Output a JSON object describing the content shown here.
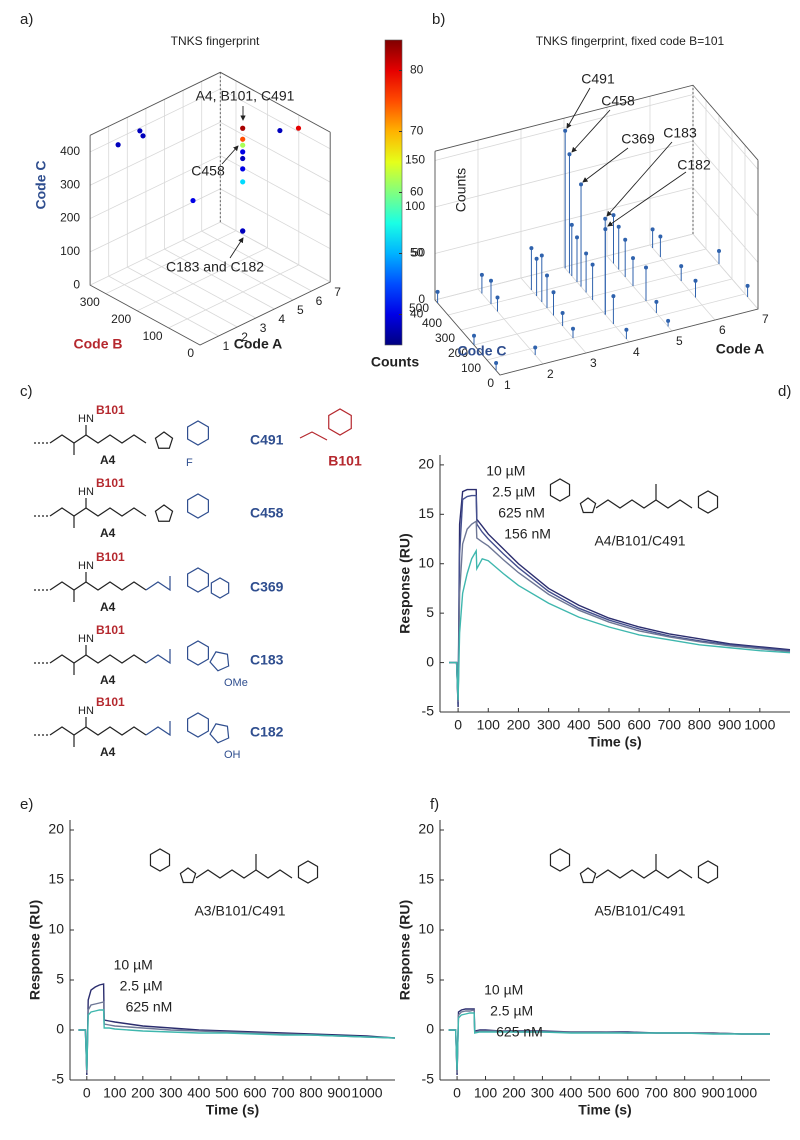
{
  "chart_data": [
    {
      "type": "scatter3d",
      "panel_label": "a)",
      "title": "TNKS fingerprint",
      "xlabel": "Code A",
      "ylabel": "Code B",
      "zlabel": "Code C",
      "xlim": [
        0,
        7
      ],
      "ylim": [
        0,
        350
      ],
      "zlim": [
        0,
        450
      ],
      "xticks": [
        1,
        2,
        3,
        4,
        5,
        6,
        7
      ],
      "yticks": [
        0,
        100,
        200,
        300
      ],
      "zticks": [
        0,
        100,
        200,
        300,
        400
      ],
      "x": [
        4,
        4,
        4,
        4,
        4,
        4,
        4,
        4,
        4,
        1,
        2,
        2,
        6,
        7,
        3
      ],
      "y": [
        101,
        101,
        101,
        101,
        101,
        101,
        101,
        101,
        101,
        320,
        300,
        310,
        101,
        101,
        200
      ],
      "z": [
        491,
        458,
        440,
        420,
        400,
        369,
        330,
        183,
        182,
        410,
        420,
        430,
        430,
        410,
        250
      ],
      "values": [
        83,
        75,
        62,
        40,
        38,
        40,
        52,
        40,
        38,
        38,
        38,
        38,
        38,
        80,
        40
      ],
      "colormap": "jet",
      "grid": true,
      "colorbar": {
        "label": "Counts",
        "lim": [
          35,
          85
        ],
        "ticks": [
          40,
          50,
          60,
          70,
          80
        ]
      },
      "annotations": [
        "A4, B101, C491",
        "C458",
        "C183 and C182"
      ]
    },
    {
      "type": "stem3d",
      "panel_label": "b)",
      "title": "TNKS fingerprint, fixed code B=101",
      "xlabel": "Code A",
      "ylabel": "Code C",
      "zlabel": "Counts",
      "xlim": [
        1,
        7
      ],
      "ylim": [
        0,
        500
      ],
      "zlim": [
        0,
        160
      ],
      "xticks": [
        1,
        2,
        3,
        4,
        5,
        6,
        7
      ],
      "yticks": [
        0,
        100,
        200,
        300,
        400,
        500
      ],
      "zticks": [
        0,
        50,
        100,
        150
      ],
      "color": "#2f62ad",
      "grid": true,
      "x": [
        4,
        4,
        4,
        4,
        4,
        3,
        3,
        3,
        3,
        4,
        4,
        4,
        4,
        5,
        5,
        5,
        5,
        3,
        4,
        5,
        2,
        2,
        1,
        1,
        6,
        6,
        7,
        7,
        2,
        3,
        5,
        6,
        1,
        6,
        4,
        3,
        5,
        2
      ],
      "y": [
        491,
        458,
        369,
        183,
        182,
        420,
        380,
        340,
        300,
        440,
        400,
        330,
        280,
        450,
        410,
        360,
        300,
        250,
        120,
        200,
        470,
        350,
        480,
        200,
        420,
        150,
        300,
        80,
        60,
        100,
        30,
        480,
        30,
        260,
        20,
        180,
        120,
        400
      ],
      "values": [
        148,
        128,
        110,
        103,
        92,
        45,
        40,
        50,
        35,
        55,
        48,
        42,
        38,
        52,
        46,
        40,
        30,
        25,
        30,
        36,
        20,
        15,
        12,
        10,
        22,
        18,
        14,
        12,
        8,
        10,
        6,
        20,
        8,
        16,
        10,
        14,
        12,
        25
      ],
      "annotations": [
        "C491",
        "C458",
        "C369",
        "C183",
        "C182"
      ]
    },
    {
      "type": "line",
      "panel_label": "d)",
      "compound": "A4/B101/C491",
      "xlabel": "Time (s)",
      "ylabel": "Response (RU)",
      "xlim": [
        -60,
        1100
      ],
      "ylim": [
        -5,
        21
      ],
      "xticks": [
        0,
        100,
        200,
        300,
        400,
        500,
        600,
        700,
        800,
        900,
        1000
      ],
      "yticks": [
        -5,
        0,
        5,
        10,
        15,
        20
      ],
      "x": [
        -30,
        -5,
        0,
        5,
        15,
        30,
        45,
        60,
        62,
        80,
        100,
        150,
        200,
        300,
        400,
        500,
        600,
        700,
        800,
        900,
        1000,
        1100
      ],
      "series": [
        {
          "name": "10 µM",
          "color": "#2b2d6e",
          "values": [
            0,
            0,
            -4.5,
            14,
            17.3,
            17.5,
            17.5,
            17.5,
            14.5,
            13.8,
            13,
            11.5,
            10,
            7.5,
            5.8,
            4.5,
            3.6,
            2.9,
            2.4,
            1.9,
            1.6,
            1.3
          ]
        },
        {
          "name": "2.5 µM",
          "color": "#45508f",
          "values": [
            0,
            0,
            -4.3,
            11,
            16.5,
            16.8,
            16.9,
            16.9,
            14,
            13.2,
            12.5,
            11,
            9.6,
            7.2,
            5.5,
            4.3,
            3.4,
            2.7,
            2.2,
            1.8,
            1.5,
            1.2
          ]
        },
        {
          "name": "625 nM",
          "color": "#6e7796",
          "values": [
            0,
            0,
            -4,
            7,
            12,
            13.5,
            14,
            14.3,
            12.6,
            12.2,
            11.8,
            10.4,
            9.1,
            6.9,
            5.3,
            4.1,
            3.2,
            2.6,
            2.1,
            1.7,
            1.4,
            1.1
          ]
        },
        {
          "name": "156 nM",
          "color": "#3fb7ae",
          "values": [
            0,
            0,
            -3.8,
            3,
            7,
            9,
            10.5,
            11.3,
            9.5,
            10.5,
            10.3,
            9,
            7.8,
            6,
            4.6,
            3.6,
            2.8,
            2.3,
            1.8,
            1.5,
            1.2,
            1
          ]
        }
      ]
    },
    {
      "type": "line",
      "panel_label": "e)",
      "compound": "A3/B101/C491",
      "xlabel": "Time (s)",
      "ylabel": "Response (RU)",
      "xlim": [
        -60,
        1100
      ],
      "ylim": [
        -5,
        21
      ],
      "xticks": [
        0,
        100,
        200,
        300,
        400,
        500,
        600,
        700,
        800,
        900,
        1000
      ],
      "yticks": [
        -5,
        0,
        5,
        10,
        15,
        20
      ],
      "x": [
        -30,
        -5,
        0,
        5,
        15,
        30,
        45,
        60,
        62,
        80,
        100,
        150,
        200,
        300,
        400,
        500,
        600,
        700,
        800,
        900,
        1000,
        1100
      ],
      "series": [
        {
          "name": "10 µM",
          "color": "#2b2d6e",
          "values": [
            0,
            0,
            -4.5,
            3,
            4,
            4.3,
            4.5,
            4.6,
            1,
            0.9,
            0.8,
            0.6,
            0.4,
            0.2,
            0,
            -0.1,
            -0.2,
            -0.3,
            -0.4,
            -0.5,
            -0.6,
            -0.8
          ]
        },
        {
          "name": "2.5 µM",
          "color": "#6e7796",
          "values": [
            0,
            0,
            -4.3,
            2,
            2.5,
            2.6,
            2.7,
            2.8,
            0.6,
            0.5,
            0.4,
            0.3,
            0.2,
            0,
            -0.1,
            -0.2,
            -0.3,
            -0.4,
            -0.5,
            -0.6,
            -0.7,
            -0.8
          ]
        },
        {
          "name": "625 nM",
          "color": "#3fb7ae",
          "values": [
            0,
            0,
            -4,
            1.5,
            1.8,
            1.9,
            2,
            2,
            0.2,
            0.2,
            0.1,
            0,
            -0.1,
            -0.2,
            -0.3,
            -0.3,
            -0.4,
            -0.5,
            -0.5,
            -0.6,
            -0.7,
            -0.8
          ]
        }
      ]
    },
    {
      "type": "line",
      "panel_label": "f)",
      "compound": "A5/B101/C491",
      "xlabel": "Time (s)",
      "ylabel": "Response (RU)",
      "xlim": [
        -60,
        1100
      ],
      "ylim": [
        -5,
        21
      ],
      "xticks": [
        0,
        100,
        200,
        300,
        400,
        500,
        600,
        700,
        800,
        900,
        1000
      ],
      "yticks": [
        -5,
        0,
        5,
        10,
        15,
        20
      ],
      "x": [
        -30,
        -5,
        0,
        5,
        15,
        30,
        45,
        60,
        62,
        80,
        100,
        150,
        200,
        300,
        400,
        500,
        600,
        700,
        800,
        900,
        1000,
        1100
      ],
      "series": [
        {
          "name": "10 µM",
          "color": "#2b2d6e",
          "values": [
            0,
            0,
            -4.5,
            1.8,
            2,
            2.1,
            2.1,
            2.1,
            -0.1,
            0,
            0,
            -0.1,
            -0.1,
            -0.1,
            -0.2,
            -0.2,
            -0.2,
            -0.3,
            -0.3,
            -0.3,
            -0.4,
            -0.4
          ]
        },
        {
          "name": "2.5 µM",
          "color": "#6e7796",
          "values": [
            0,
            0,
            -4.3,
            1.5,
            1.8,
            1.9,
            1.9,
            2,
            -0.2,
            -0.1,
            -0.1,
            -0.1,
            -0.2,
            -0.2,
            -0.2,
            -0.2,
            -0.3,
            -0.3,
            -0.3,
            -0.3,
            -0.4,
            -0.4
          ]
        },
        {
          "name": "625 nM",
          "color": "#3fb7ae",
          "values": [
            0,
            0,
            -4,
            1.2,
            1.5,
            1.6,
            1.7,
            1.7,
            -0.3,
            -0.2,
            -0.2,
            -0.2,
            -0.2,
            -0.2,
            -0.3,
            -0.3,
            -0.3,
            -0.3,
            -0.3,
            -0.4,
            -0.4,
            -0.4
          ]
        }
      ]
    }
  ],
  "structures": {
    "panel_label": "c)",
    "fragment": "B101",
    "rows": [
      {
        "code_b": "B101",
        "nh": "HN",
        "code_a": "A4",
        "code_c": "C491",
        "substituent": "F"
      },
      {
        "code_b": "B101",
        "nh": "HN",
        "code_a": "A4",
        "code_c": "C458"
      },
      {
        "code_b": "B101",
        "nh": "HN",
        "code_a": "A4",
        "code_c": "C369"
      },
      {
        "code_b": "B101",
        "nh": "HN",
        "code_a": "A4",
        "code_c": "C183",
        "substituent": "OMe"
      },
      {
        "code_b": "B101",
        "nh": "HN",
        "code_a": "A4",
        "code_c": "C182",
        "substituent": "OH"
      }
    ]
  }
}
